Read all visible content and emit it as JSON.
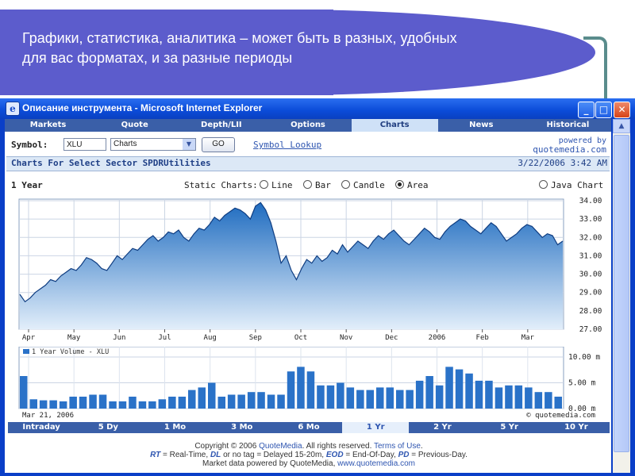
{
  "slide": {
    "title_line1": "Графики, статистика, аналитика – может быть в разных, удобных",
    "title_line2": "для вас форматах, и за разные периоды"
  },
  "window": {
    "title": "Описание инструмента - Microsoft Internet Explorer",
    "icon": "ie-icon",
    "controls": [
      "minimize-icon",
      "maximize-icon",
      "close-icon"
    ]
  },
  "nav": {
    "tabs": [
      "Markets",
      "Quote",
      "Depth/LII",
      "Options",
      "Charts",
      "News",
      "Historical"
    ],
    "active": "Charts"
  },
  "symbol_row": {
    "label": "Symbol:",
    "symbol_value": "XLU",
    "chart_type_value": "Charts",
    "go_label": "GO",
    "lookup_label": "Symbol Lookup",
    "powered_by": "powered by",
    "powered_site": "quotemedia.com"
  },
  "chart_header": {
    "title": "Charts For Select Sector SPDRUtilities",
    "date": "3/22/2006 3:42 AM"
  },
  "options": {
    "period": "1 Year",
    "static_label": "Static Charts:",
    "types": [
      "Line",
      "Bar",
      "Candle",
      "Area"
    ],
    "selected": "Area",
    "java_label": "Java Chart"
  },
  "chart_data": [
    {
      "type": "area",
      "title": "",
      "x_ticks": [
        "Apr",
        "May",
        "Jun",
        "Jul",
        "Aug",
        "Sep",
        "Oct",
        "Nov",
        "Dec",
        "2006",
        "Feb",
        "Mar"
      ],
      "y_ticks": [
        "34.00",
        "33.00",
        "32.00",
        "31.00",
        "30.00",
        "29.00",
        "28.00",
        "27.00"
      ],
      "ylim": [
        27.0,
        34.0
      ],
      "grid": true,
      "colors": {
        "fill_top": "#1f6cc0",
        "fill_bottom": "#e2eefa",
        "line": "#0e3c80"
      },
      "series": [
        {
          "values": [
            28.9,
            28.5,
            28.7,
            29.0,
            29.2,
            29.4,
            29.7,
            29.6,
            29.9,
            30.1,
            30.3,
            30.2,
            30.5,
            30.9,
            30.8,
            30.6,
            30.3,
            30.2,
            30.6,
            31.0,
            30.8,
            31.1,
            31.4,
            31.3,
            31.6,
            31.9,
            32.1,
            31.8,
            32.0,
            32.3,
            32.2,
            32.4,
            32.0,
            31.8,
            32.2,
            32.5,
            32.4,
            32.7,
            33.1,
            32.9,
            33.2,
            33.4,
            33.6,
            33.5,
            33.3,
            33.0,
            33.7,
            33.9,
            33.5,
            32.8,
            31.8,
            30.6,
            31.0,
            30.2,
            29.7,
            30.3,
            30.8,
            30.6,
            31.0,
            30.7,
            30.9,
            31.3,
            31.1,
            31.6,
            31.2,
            31.5,
            31.8,
            31.6,
            31.4,
            31.8,
            32.1,
            31.9,
            32.2,
            32.4,
            32.1,
            31.8,
            31.6,
            31.9,
            32.2,
            32.5,
            32.3,
            32.0,
            31.9,
            32.3,
            32.6,
            32.8,
            33.0,
            32.9,
            32.6,
            32.4,
            32.2,
            32.5,
            32.8,
            32.6,
            32.2,
            31.8,
            32.0,
            32.2,
            32.5,
            32.7,
            32.6,
            32.3,
            32.0,
            32.2,
            32.1,
            31.6,
            31.8
          ]
        }
      ]
    },
    {
      "type": "bar",
      "title": "",
      "legend": "1 Year Volume - XLU",
      "y_ticks": [
        "10.00 m",
        "5.00 m",
        "0.00 m"
      ],
      "ylim": [
        0,
        12.0
      ],
      "date_label": "Mar 21, 2006",
      "brand": "© quotemedia.com",
      "colors": {
        "bar": "#2a72c8"
      },
      "series": [
        {
          "name": "1 Year Volume - XLU",
          "values": [
            6.3,
            1.8,
            1.6,
            1.6,
            1.4,
            2.3,
            2.3,
            2.7,
            2.7,
            1.4,
            1.4,
            2.3,
            1.4,
            1.4,
            1.8,
            2.3,
            2.3,
            3.6,
            4.1,
            5.0,
            2.3,
            2.7,
            2.7,
            3.2,
            3.2,
            2.7,
            2.7,
            7.2,
            8.1,
            7.2,
            4.5,
            4.5,
            5.0,
            4.1,
            3.6,
            3.6,
            4.1,
            4.1,
            3.6,
            3.6,
            5.4,
            6.3,
            4.5,
            8.1,
            7.6,
            6.8,
            5.4,
            5.4,
            4.1,
            4.5,
            4.5,
            4.1,
            3.2,
            3.2,
            2.3
          ]
        }
      ]
    }
  ],
  "period_tabs": {
    "items": [
      "Intraday",
      "5 Dy",
      "1 Mo",
      "3 Mo",
      "6 Mo",
      "1 Yr",
      "2 Yr",
      "5 Yr",
      "10 Yr"
    ],
    "active": "1 Yr"
  },
  "footer": {
    "copyright": "Copyright © 2006",
    "company": "QuoteMedia",
    "rights": ". All rights reserved.",
    "terms": "Terms of Use",
    "terms_end": ".",
    "rt": "RT",
    "rt_text": "= Real-Time,",
    "dl": "DL",
    "dl_text": "or no tag = Delayed 15-20m,",
    "eod": "EOD",
    "eod_text": "= End-Of-Day,",
    "pd": "PD",
    "pd_text": "= Previous-Day.",
    "market_data": "Market data powered by QuoteMedia,",
    "site": "www.quotemedia.com"
  }
}
